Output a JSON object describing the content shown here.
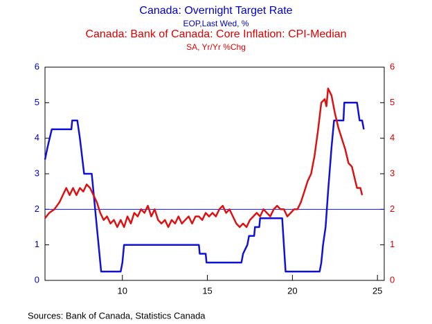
{
  "chart_data": {
    "type": "line",
    "titles": [
      {
        "text": "Canada: Overnight Target Rate",
        "color": "#0000cc",
        "size": 16
      },
      {
        "text": "EOP,Last Wed, %",
        "color": "#0000cc",
        "size": 12
      },
      {
        "text": "Canada: Bank of Canada: Core Inflation: CPI-Median",
        "color": "#dd0000",
        "size": 16
      },
      {
        "text": "SA, Yr/Yr %Chg",
        "color": "#dd0000",
        "size": 12
      }
    ],
    "source": "Sources:  Bank of Canada, Statistics Canada",
    "xlim": [
      5.45,
      25.4
    ],
    "xticks": [
      10,
      15,
      20,
      25
    ],
    "ylim": [
      0,
      6
    ],
    "yticks": [
      0,
      1,
      2,
      3,
      4,
      5,
      6
    ],
    "y2lim": [
      0,
      6
    ],
    "y2ticks": [
      0,
      1,
      2,
      3,
      4,
      5,
      6
    ],
    "hline": 2,
    "series": [
      {
        "name": "Canada: Overnight Target Rate",
        "color": "#1010dd",
        "axis": "y",
        "x": [
          5.45,
          5.6,
          5.85,
          7.0,
          7.05,
          7.35,
          7.5,
          7.75,
          8.2,
          8.3,
          8.5,
          8.6,
          8.75,
          9.9,
          10.0,
          10.1,
          14.5,
          14.55,
          14.9,
          14.95,
          17.0,
          17.1,
          17.35,
          17.45,
          17.75,
          17.8,
          18.05,
          18.1,
          18.3,
          19.4,
          19.6,
          21.6,
          21.7,
          21.8,
          21.95,
          22.1,
          22.3,
          22.45,
          23.0,
          23.05,
          23.8,
          23.95,
          24.1,
          24.2
        ],
        "values": [
          3.4,
          3.75,
          4.25,
          4.25,
          4.5,
          4.5,
          4.0,
          3.0,
          3.0,
          2.5,
          1.5,
          1.0,
          0.25,
          0.25,
          0.5,
          1.0,
          1.0,
          0.75,
          0.75,
          0.5,
          0.5,
          0.75,
          1.0,
          1.25,
          1.25,
          1.5,
          1.5,
          1.75,
          1.75,
          1.75,
          0.25,
          0.25,
          0.5,
          1.0,
          1.5,
          2.5,
          3.75,
          4.5,
          4.5,
          5.0,
          5.0,
          4.5,
          4.5,
          4.25
        ]
      },
      {
        "name": "Canada: Bank of Canada: Core Inflation: CPI-Median",
        "color": "#dd1111",
        "axis": "y2",
        "x": [
          5.45,
          5.7,
          6.0,
          6.3,
          6.5,
          6.7,
          6.9,
          7.1,
          7.3,
          7.5,
          7.7,
          7.9,
          8.1,
          8.3,
          8.5,
          8.7,
          8.9,
          9.1,
          9.3,
          9.5,
          9.7,
          9.9,
          10.1,
          10.3,
          10.5,
          10.7,
          10.9,
          11.1,
          11.3,
          11.5,
          11.7,
          11.9,
          12.1,
          12.3,
          12.5,
          12.7,
          12.9,
          13.1,
          13.3,
          13.5,
          13.7,
          13.9,
          14.1,
          14.3,
          14.5,
          14.7,
          14.9,
          15.1,
          15.3,
          15.5,
          15.7,
          15.9,
          16.1,
          16.3,
          16.5,
          16.7,
          16.9,
          17.1,
          17.3,
          17.5,
          17.7,
          17.9,
          18.1,
          18.3,
          18.5,
          18.7,
          18.9,
          19.1,
          19.3,
          19.5,
          19.7,
          19.9,
          20.1,
          20.3,
          20.5,
          20.7,
          20.9,
          21.1,
          21.3,
          21.5,
          21.7,
          21.9,
          22.0,
          22.1,
          22.3,
          22.5,
          22.7,
          22.9,
          23.1,
          23.3,
          23.5,
          23.7,
          23.8,
          24.0,
          24.1
        ],
        "values": [
          1.75,
          1.9,
          2.0,
          2.2,
          2.4,
          2.6,
          2.4,
          2.6,
          2.4,
          2.6,
          2.5,
          2.7,
          2.6,
          2.4,
          2.2,
          1.9,
          1.7,
          1.8,
          1.6,
          1.7,
          1.5,
          1.7,
          1.5,
          1.8,
          1.6,
          1.9,
          1.8,
          2.0,
          1.9,
          2.1,
          1.8,
          2.0,
          1.7,
          1.6,
          1.7,
          1.5,
          1.7,
          1.6,
          1.8,
          1.6,
          1.7,
          1.8,
          1.6,
          1.8,
          1.8,
          1.7,
          1.9,
          1.8,
          1.9,
          1.8,
          2.0,
          2.1,
          1.9,
          2.0,
          1.8,
          1.6,
          1.5,
          1.6,
          1.5,
          1.7,
          1.8,
          1.9,
          1.8,
          2.0,
          1.9,
          1.8,
          2.0,
          2.1,
          2.0,
          2.0,
          1.8,
          1.9,
          2.0,
          2.0,
          2.2,
          2.5,
          2.8,
          3.0,
          3.5,
          4.2,
          5.0,
          5.1,
          4.9,
          5.4,
          5.2,
          4.7,
          4.3,
          4.0,
          3.7,
          3.3,
          3.2,
          2.8,
          2.6,
          2.6,
          2.4
        ]
      }
    ]
  }
}
